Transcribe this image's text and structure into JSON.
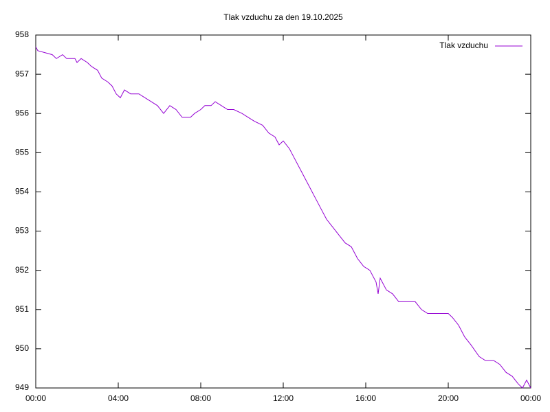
{
  "chart_data": {
    "type": "line",
    "title": "Tlak vzduchu za den 19.10.2025",
    "x": [
      0,
      0.1,
      0.8,
      1,
      1.3,
      1.5,
      1.9,
      2.0,
      2.2,
      2.5,
      2.7,
      3.0,
      3.2,
      3.5,
      3.7,
      3.9,
      4.1,
      4.3,
      4.6,
      5.0,
      5.3,
      5.6,
      5.9,
      6.2,
      6.5,
      6.8,
      7.1,
      7.5,
      7.7,
      8.0,
      8.2,
      8.5,
      8.7,
      9.0,
      9.3,
      9.6,
      10.0,
      10.3,
      10.6,
      11.0,
      11.3,
      11.6,
      11.8,
      12.0,
      12.3,
      12.6,
      12.9,
      13.2,
      13.5,
      13.8,
      14.1,
      14.4,
      14.7,
      15.0,
      15.3,
      15.6,
      15.9,
      16.2,
      16.5,
      16.6,
      16.7,
      17.0,
      17.3,
      17.6,
      18.0,
      18.4,
      18.7,
      19.0,
      19.5,
      20.0,
      20.2,
      20.5,
      20.8,
      21.1,
      21.5,
      21.8,
      22.2,
      22.5,
      22.8,
      23.1,
      23.4,
      23.6,
      23.8,
      24.0
    ],
    "series": [
      {
        "name": "Tlak vzduchu",
        "color": "#9400d3",
        "values": [
          957.7,
          957.6,
          957.5,
          957.4,
          957.5,
          957.4,
          957.4,
          957.3,
          957.4,
          957.3,
          957.2,
          957.1,
          956.9,
          956.8,
          956.7,
          956.5,
          956.4,
          956.6,
          956.5,
          956.5,
          956.4,
          956.3,
          956.2,
          956.0,
          956.2,
          956.1,
          955.9,
          955.9,
          956.0,
          956.1,
          956.2,
          956.2,
          956.3,
          956.2,
          956.1,
          956.1,
          956.0,
          955.9,
          955.8,
          955.7,
          955.5,
          955.4,
          955.2,
          955.3,
          955.1,
          954.8,
          954.5,
          954.2,
          953.9,
          953.6,
          953.3,
          953.1,
          952.9,
          952.7,
          952.6,
          952.3,
          952.1,
          952.0,
          951.7,
          951.4,
          951.8,
          951.5,
          951.4,
          951.2,
          951.2,
          951.2,
          951.0,
          950.9,
          950.9,
          950.9,
          950.8,
          950.6,
          950.3,
          950.1,
          949.8,
          949.7,
          949.7,
          949.6,
          949.4,
          949.3,
          949.1,
          949.0,
          949.2,
          949.0
        ]
      }
    ],
    "xlim": [
      0,
      24
    ],
    "xticks": [
      {
        "value": 0,
        "label": "00:00"
      },
      {
        "value": 4,
        "label": "04:00"
      },
      {
        "value": 8,
        "label": "08:00"
      },
      {
        "value": 12,
        "label": "12:00"
      },
      {
        "value": 16,
        "label": "16:00"
      },
      {
        "value": 20,
        "label": "20:00"
      },
      {
        "value": 24,
        "label": "00:00"
      }
    ],
    "ylim": [
      949,
      958
    ],
    "yticks": [
      949,
      950,
      951,
      952,
      953,
      954,
      955,
      956,
      957,
      958
    ],
    "legend": "top-right"
  }
}
